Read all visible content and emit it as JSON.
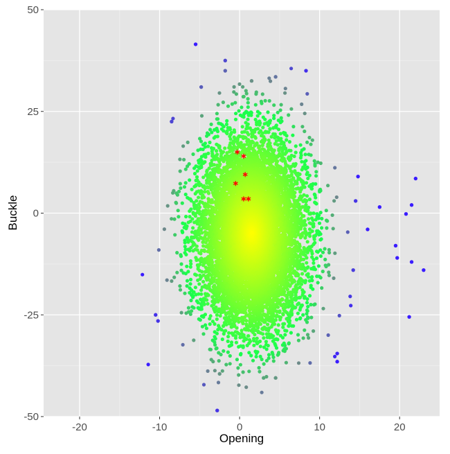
{
  "chart_data": {
    "type": "scatter",
    "title": "",
    "xlabel": "Opening",
    "ylabel": "Buckle",
    "xlim": [
      -24.5,
      25
    ],
    "ylim": [
      -50,
      50
    ],
    "x_ticks": [
      -20,
      -10,
      0,
      10,
      20
    ],
    "x_tick_labels": [
      "-20",
      "-10",
      "0",
      "10",
      "20"
    ],
    "y_ticks": [
      -50,
      -25,
      0,
      25,
      50
    ],
    "y_tick_labels": [
      "-50",
      "-25",
      "0",
      "25",
      "50"
    ],
    "grid": true,
    "legend": "none",
    "colors": {
      "panel_background": "#e5e5e5",
      "grid_major": "#ffffff",
      "grid_minor": "#f0f0f0",
      "center_color": "#ffff00",
      "mid_color": "#19ff4c",
      "outer_color": "#6e8a8a",
      "extreme_color": "#3a1cff",
      "highlight_color": "#ff0000"
    },
    "point_cloud": {
      "description_of_distribution": "dense roughly elliptical cloud",
      "center": [
        1.5,
        -5
      ],
      "std": [
        3.3,
        11.5
      ],
      "n_points": 9000,
      "color_mapping": "color shifts from yellow at center to green, then grey, then blue with distance"
    },
    "outlier_points": [
      {
        "x": -5.5,
        "y": 41.5
      },
      {
        "x": -1.8,
        "y": 37.5
      },
      {
        "x": -1.8,
        "y": 35
      },
      {
        "x": -2.8,
        "y": -48.5
      },
      {
        "x": 8.3,
        "y": 35
      },
      {
        "x": 4.5,
        "y": 33.5
      },
      {
        "x": 1.5,
        "y": 32.5
      },
      {
        "x": -4.8,
        "y": 31
      },
      {
        "x": 22,
        "y": 8.5
      },
      {
        "x": 21.5,
        "y": 2
      },
      {
        "x": 23,
        "y": -14
      },
      {
        "x": 21.5,
        "y": -12
      },
      {
        "x": 21.2,
        "y": -25.5
      },
      {
        "x": 17.5,
        "y": 1.5
      },
      {
        "x": 19.5,
        "y": -8
      },
      {
        "x": 19.7,
        "y": -11
      },
      {
        "x": 20.8,
        "y": -0.2
      },
      {
        "x": -8.5,
        "y": 22.5
      },
      {
        "x": -10.5,
        "y": -25
      },
      {
        "x": -10.2,
        "y": -26.5
      },
      {
        "x": 12.2,
        "y": -34.5
      },
      {
        "x": 12.2,
        "y": -36.5
      },
      {
        "x": 3,
        "y": -40.5
      },
      {
        "x": 4.5,
        "y": -40.5
      },
      {
        "x": -2.5,
        "y": -39.5
      },
      {
        "x": 14.8,
        "y": 9
      },
      {
        "x": 14.5,
        "y": 3
      },
      {
        "x": 16,
        "y": -4
      },
      {
        "x": 14.2,
        "y": -14
      }
    ],
    "highlight_points": [
      {
        "x": -0.3,
        "y": 15
      },
      {
        "x": 0.5,
        "y": 14
      },
      {
        "x": 0.7,
        "y": 9.5
      },
      {
        "x": -0.5,
        "y": 7.3
      },
      {
        "x": 0.5,
        "y": 3.5
      },
      {
        "x": 1.1,
        "y": 3.5
      }
    ],
    "highlight_marker": "asterisk"
  }
}
